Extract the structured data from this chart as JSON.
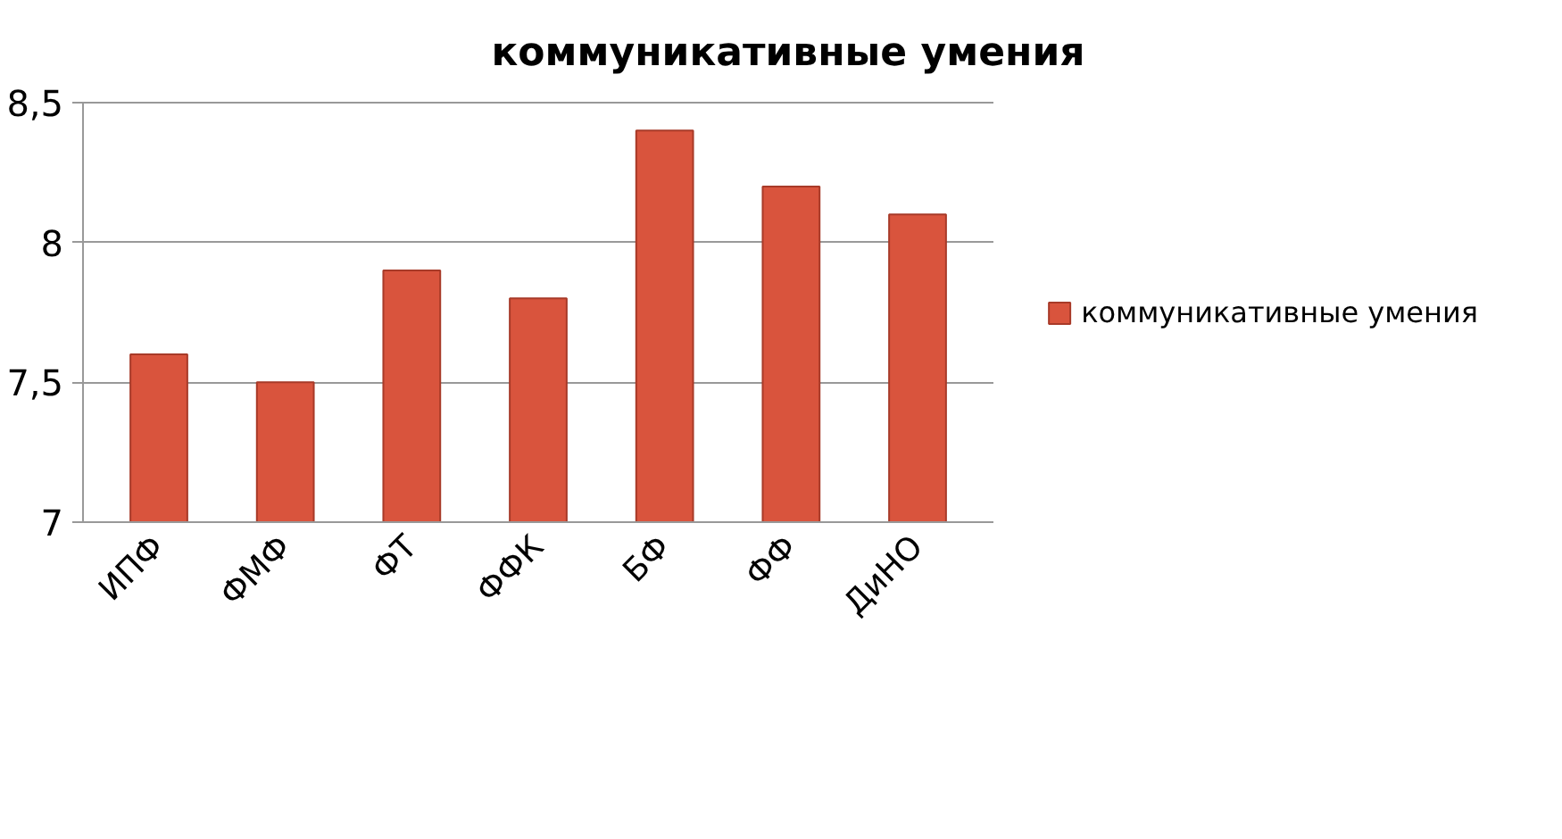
{
  "chart_data": {
    "type": "bar",
    "title": "коммуникативные умения",
    "categories": [
      "ИПФ",
      "ФМФ",
      "ФТ",
      "ФФК",
      "БФ",
      "ФФ",
      "ДиНО"
    ],
    "series": [
      {
        "name": "коммуникативные умения",
        "color": "#d9543d",
        "values": [
          7.6,
          7.5,
          7.9,
          7.8,
          8.4,
          8.2,
          8.1
        ]
      }
    ],
    "ylim": [
      7,
      8.5
    ],
    "yticks": [
      7,
      {
        "value": 7.5,
        "label": "7,5"
      },
      8,
      {
        "value": 8.5,
        "label": "8,5"
      }
    ],
    "grid": "y",
    "legend": "right"
  }
}
